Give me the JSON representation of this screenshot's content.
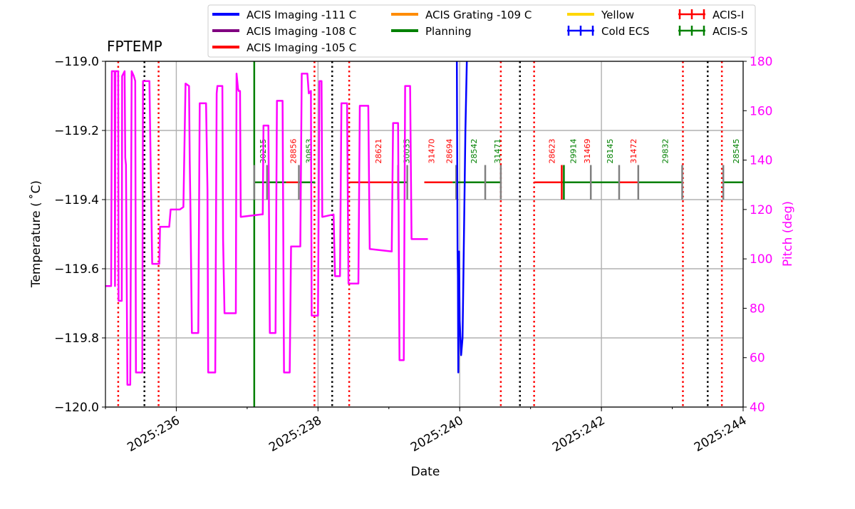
{
  "chart_data": {
    "type": "line",
    "title": "FPTEMP",
    "xlabel": "Date",
    "ylabel": "Temperature ($^\\circ$C)",
    "ylabel_display": "Temperature ( ˚C)",
    "y2label": "Pitch (deg)",
    "xlim_day": [
      235.0,
      244.0
    ],
    "ylim": [
      -120.0,
      -119.0
    ],
    "y2lim": [
      40,
      180
    ],
    "xticks": [
      {
        "day": 236,
        "label": "2025:236"
      },
      {
        "day": 238,
        "label": "2025:238"
      },
      {
        "day": 240,
        "label": "2025:240"
      },
      {
        "day": 242,
        "label": "2025:242"
      },
      {
        "day": 244,
        "label": "2025:244"
      }
    ],
    "yticks": [
      {
        "v": -120.0,
        "label": "−120.0"
      },
      {
        "v": -119.8,
        "label": "−119.8"
      },
      {
        "v": -119.6,
        "label": "−119.6"
      },
      {
        "v": -119.4,
        "label": "−119.4"
      },
      {
        "v": -119.2,
        "label": "−119.2"
      },
      {
        "v": -119.0,
        "label": "−119.0"
      }
    ],
    "y2ticks": [
      40,
      60,
      80,
      100,
      120,
      140,
      160,
      180
    ],
    "grid": true,
    "colors": {
      "imaging111": "#0000ff",
      "imaging108": "#800080",
      "imaging105": "#ff0000",
      "grating109": "#ff8c00",
      "planning": "#008000",
      "yellow": "#ffd700",
      "cold_ecs": "#0000ff",
      "acis_i": "#ff0000",
      "acis_s": "#008000",
      "pitch": "#ff00ff",
      "grid": "#b0b0b0",
      "comm": "#000000",
      "red_lines": "#ff0000"
    },
    "legend": {
      "location": "top",
      "entries": [
        {
          "label": "ACIS Imaging -111 C",
          "color": "#0000ff",
          "kind": "line"
        },
        {
          "label": "ACIS Imaging -108 C",
          "color": "#800080",
          "kind": "line"
        },
        {
          "label": "ACIS Imaging -105 C",
          "color": "#ff0000",
          "kind": "line"
        },
        {
          "label": "ACIS Grating -109 C",
          "color": "#ff8c00",
          "kind": "line"
        },
        {
          "label": "Planning",
          "color": "#008000",
          "kind": "line"
        },
        {
          "label": "Yellow",
          "color": "#ffd700",
          "kind": "line"
        },
        {
          "label": "Cold ECS",
          "color": "#0000ff",
          "kind": "cross"
        },
        {
          "label": "ACIS-I",
          "color": "#ff0000",
          "kind": "cross"
        },
        {
          "label": "ACIS-S",
          "color": "#008000",
          "kind": "cross"
        }
      ]
    },
    "pitch_series": [
      [
        235.0,
        89
      ],
      [
        235.08,
        89
      ],
      [
        235.09,
        176
      ],
      [
        235.13,
        176
      ],
      [
        235.135,
        89
      ],
      [
        235.14,
        176
      ],
      [
        235.18,
        176
      ],
      [
        235.185,
        83
      ],
      [
        235.23,
        83
      ],
      [
        235.235,
        174
      ],
      [
        235.27,
        176
      ],
      [
        235.28,
        141
      ],
      [
        235.29,
        138
      ],
      [
        235.31,
        49
      ],
      [
        235.35,
        49
      ],
      [
        235.37,
        176
      ],
      [
        235.4,
        174
      ],
      [
        235.42,
        172
      ],
      [
        235.43,
        54
      ],
      [
        235.5,
        54
      ],
      [
        235.52,
        54
      ],
      [
        235.53,
        172
      ],
      [
        235.62,
        172
      ],
      [
        235.66,
        98
      ],
      [
        235.76,
        98
      ],
      [
        235.77,
        113
      ],
      [
        235.9,
        113
      ],
      [
        235.92,
        120
      ],
      [
        236.05,
        120
      ],
      [
        236.1,
        121
      ],
      [
        236.13,
        171
      ],
      [
        236.18,
        170
      ],
      [
        236.19,
        140
      ],
      [
        236.2,
        120
      ],
      [
        236.22,
        70
      ],
      [
        236.31,
        70
      ],
      [
        236.33,
        163
      ],
      [
        236.42,
        163
      ],
      [
        236.44,
        128
      ],
      [
        236.45,
        54
      ],
      [
        236.55,
        54
      ],
      [
        236.57,
        167
      ],
      [
        236.58,
        170
      ],
      [
        236.65,
        170
      ],
      [
        236.66,
        108
      ],
      [
        236.68,
        78
      ],
      [
        236.84,
        78
      ],
      [
        236.85,
        175
      ],
      [
        236.87,
        169
      ],
      [
        236.88,
        168
      ],
      [
        236.9,
        168
      ],
      [
        236.91,
        117
      ],
      [
        237.2,
        118
      ],
      [
        237.22,
        118
      ],
      [
        237.23,
        154
      ],
      [
        237.3,
        154
      ],
      [
        237.32,
        70
      ],
      [
        237.4,
        70
      ],
      [
        237.42,
        164
      ],
      [
        237.5,
        164
      ],
      [
        237.52,
        54
      ],
      [
        237.6,
        54
      ],
      [
        237.62,
        105
      ],
      [
        237.75,
        105
      ],
      [
        237.77,
        175
      ],
      [
        237.85,
        175
      ],
      [
        237.87,
        167
      ],
      [
        237.9,
        168
      ],
      [
        237.91,
        77
      ],
      [
        238.0,
        77
      ],
      [
        238.02,
        172
      ],
      [
        238.05,
        172
      ],
      [
        238.06,
        117
      ],
      [
        238.22,
        118
      ],
      [
        238.24,
        93
      ],
      [
        238.31,
        93
      ],
      [
        238.33,
        163
      ],
      [
        238.41,
        163
      ],
      [
        238.43,
        90
      ],
      [
        238.57,
        90
      ],
      [
        238.59,
        162
      ],
      [
        238.71,
        162
      ],
      [
        238.73,
        104
      ],
      [
        239.04,
        103
      ],
      [
        239.06,
        155
      ],
      [
        239.13,
        155
      ],
      [
        239.15,
        59
      ],
      [
        239.21,
        59
      ],
      [
        239.23,
        170
      ],
      [
        239.3,
        170
      ],
      [
        239.32,
        108
      ],
      [
        239.55,
        108
      ]
    ],
    "pitch_xmap": {
      "scale": 0.5,
      "segments": "compressed-days"
    },
    "temp_series": [
      [
        239.96,
        -119.0
      ],
      [
        239.97,
        -119.55
      ],
      [
        239.975,
        -119.62
      ],
      [
        239.98,
        -119.9
      ],
      [
        239.99,
        -119.55
      ],
      [
        240.0,
        -119.75
      ],
      [
        240.02,
        -119.85
      ],
      [
        240.04,
        -119.8
      ],
      [
        240.06,
        -119.5
      ],
      [
        240.08,
        -119.2
      ],
      [
        240.1,
        -119.0
      ]
    ],
    "comm_lines": [
      235.55,
      238.2,
      240.85,
      243.5
    ],
    "red_vlines": [
      235.18,
      235.75,
      237.95,
      238.44,
      240.58,
      241.05,
      243.15,
      243.7
    ],
    "planning_vline": 237.1,
    "track_y": -119.35,
    "tick_mark_top": -119.3,
    "tick_mark_bottom": -119.4,
    "obsids": [
      {
        "day": 237.22,
        "label": "30215",
        "color": "#008000"
      },
      {
        "day": 237.65,
        "label": "28856",
        "color": "#ff0000"
      },
      {
        "day": 237.87,
        "label": "30853",
        "color": "#008000"
      },
      {
        "day": 238.85,
        "label": "28621",
        "color": "#ff0000"
      },
      {
        "day": 239.25,
        "label": "30035",
        "color": "#008000"
      },
      {
        "day": 239.6,
        "label": "31470",
        "color": "#ff0000"
      },
      {
        "day": 239.85,
        "label": "28694",
        "color": "#ff0000"
      },
      {
        "day": 240.2,
        "label": "28542",
        "color": "#008000"
      },
      {
        "day": 240.53,
        "label": "31471",
        "color": "#008000"
      },
      {
        "day": 241.3,
        "label": "28623",
        "color": "#ff0000"
      },
      {
        "day": 241.6,
        "label": "29914",
        "color": "#008000"
      },
      {
        "day": 241.8,
        "label": "31469",
        "color": "#ff0000"
      },
      {
        "day": 242.12,
        "label": "28145",
        "color": "#008000"
      },
      {
        "day": 242.45,
        "label": "31472",
        "color": "#ff0000"
      },
      {
        "day": 242.9,
        "label": "29832",
        "color": "#008000"
      },
      {
        "day": 243.9,
        "label": "28545",
        "color": "#008000"
      }
    ],
    "track_segments": [
      {
        "start": 237.1,
        "end": 237.55,
        "color": "#008000"
      },
      {
        "start": 237.55,
        "end": 237.74,
        "color": "#ff0000"
      },
      {
        "start": 237.74,
        "end": 237.96,
        "color": "#008000"
      },
      {
        "start": 238.44,
        "end": 239.13,
        "color": "#ff0000"
      },
      {
        "start": 239.13,
        "end": 239.26,
        "color": "#008000"
      },
      {
        "start": 239.5,
        "end": 239.9,
        "color": "#ff0000"
      },
      {
        "start": 239.9,
        "end": 240.57,
        "color": "#008000"
      },
      {
        "start": 241.05,
        "end": 241.44,
        "color": "#ff0000"
      },
      {
        "start": 241.44,
        "end": 241.5,
        "color": "#008000"
      },
      {
        "start": 241.5,
        "end": 242.25,
        "color": "#008000"
      },
      {
        "start": 242.25,
        "end": 242.52,
        "color": "#ff0000"
      },
      {
        "start": 242.52,
        "end": 243.14,
        "color": "#008000"
      },
      {
        "start": 243.72,
        "end": 244.0,
        "color": "#008000"
      }
    ],
    "track_ticks": [
      {
        "day": 237.1,
        "color": "#808080"
      },
      {
        "day": 237.28,
        "color": "#808080"
      },
      {
        "day": 237.73,
        "color": "#808080"
      },
      {
        "day": 239.13,
        "color": "#808080"
      },
      {
        "day": 239.26,
        "color": "#808080"
      },
      {
        "day": 239.95,
        "color": "#808080"
      },
      {
        "day": 240.36,
        "color": "#808080"
      },
      {
        "day": 240.58,
        "color": "#808080"
      },
      {
        "day": 241.44,
        "color": "#ff0000"
      },
      {
        "day": 241.47,
        "color": "#008000"
      },
      {
        "day": 241.85,
        "color": "#808080"
      },
      {
        "day": 242.25,
        "color": "#808080"
      },
      {
        "day": 242.52,
        "color": "#808080"
      },
      {
        "day": 243.14,
        "color": "#808080"
      },
      {
        "day": 243.72,
        "color": "#808080"
      }
    ]
  }
}
